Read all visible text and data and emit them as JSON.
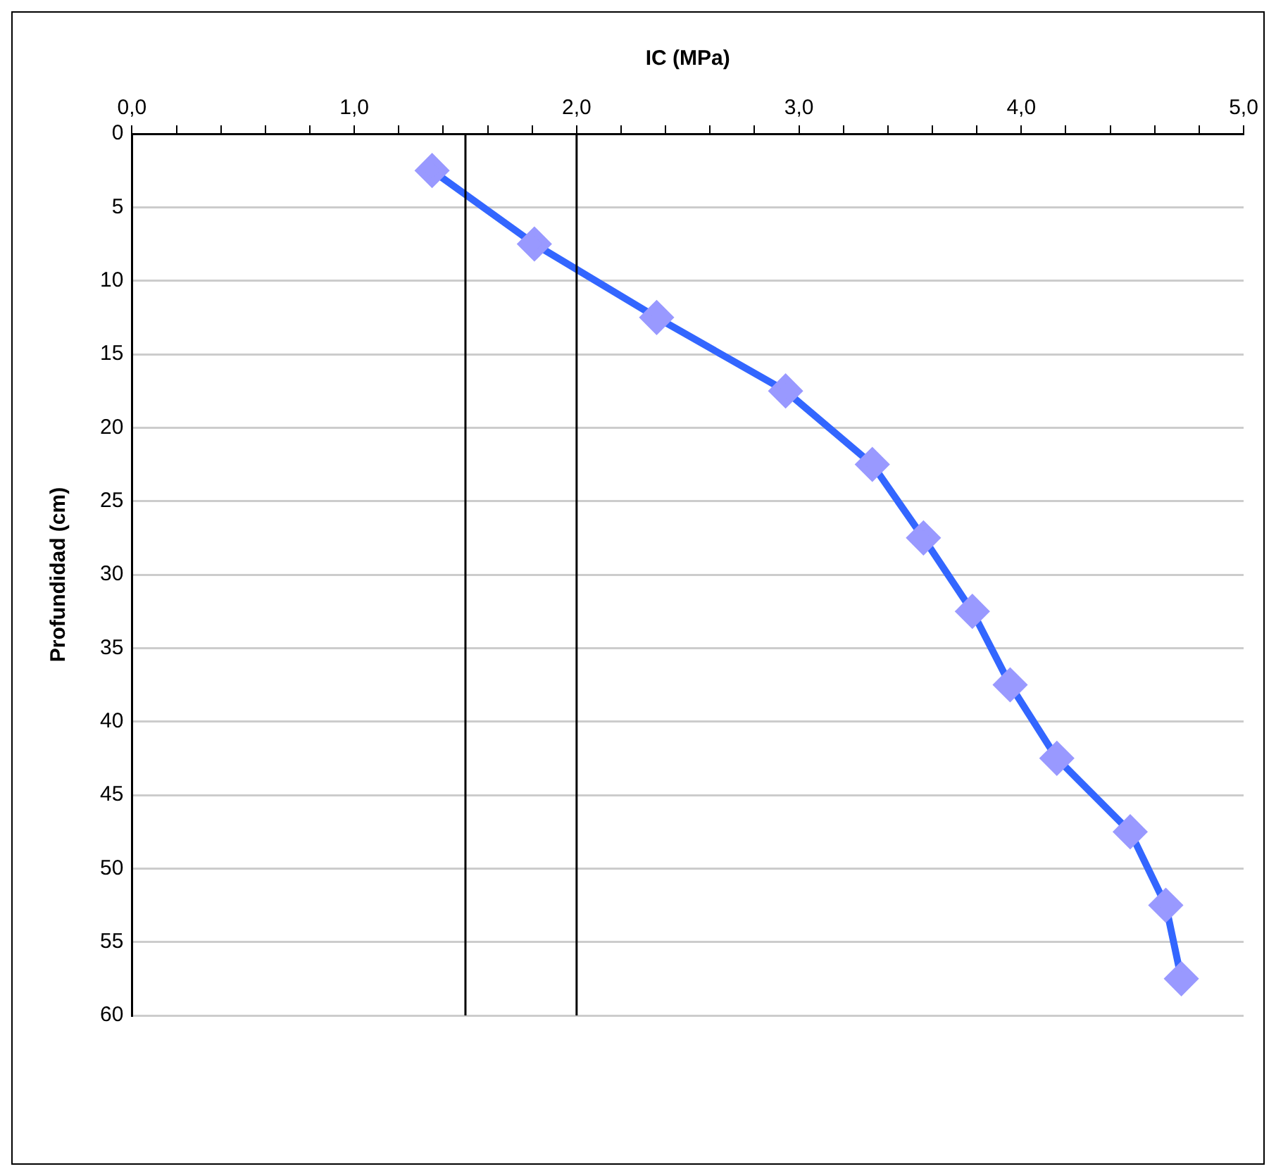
{
  "chart_data": {
    "type": "line",
    "xlabel": "IC (MPa)",
    "ylabel": "Profundidad (cm)",
    "xlim": [
      0,
      5
    ],
    "xticks": [
      {
        "value": 0,
        "label": "0,0"
      },
      {
        "value": 0.2,
        "label": null
      },
      {
        "value": 0.4,
        "label": null
      },
      {
        "value": 0.6,
        "label": null
      },
      {
        "value": 0.8,
        "label": null
      },
      {
        "value": 1,
        "label": "1,0"
      },
      {
        "value": 1.2,
        "label": null
      },
      {
        "value": 1.4,
        "label": null
      },
      {
        "value": 1.6,
        "label": null
      },
      {
        "value": 1.8,
        "label": null
      },
      {
        "value": 2,
        "label": "2,0"
      },
      {
        "value": 2.2,
        "label": null
      },
      {
        "value": 2.4,
        "label": null
      },
      {
        "value": 2.6,
        "label": null
      },
      {
        "value": 2.8,
        "label": null
      },
      {
        "value": 3,
        "label": "3,0"
      },
      {
        "value": 3.2,
        "label": null
      },
      {
        "value": 3.4,
        "label": null
      },
      {
        "value": 3.6,
        "label": null
      },
      {
        "value": 3.8,
        "label": null
      },
      {
        "value": 4,
        "label": "4,0"
      },
      {
        "value": 4.2,
        "label": null
      },
      {
        "value": 4.4,
        "label": null
      },
      {
        "value": 4.6,
        "label": null
      },
      {
        "value": 4.8,
        "label": null
      },
      {
        "value": 5,
        "label": "5,0"
      }
    ],
    "ylim": [
      60,
      0
    ],
    "yticks": [
      0,
      5,
      10,
      15,
      20,
      25,
      30,
      35,
      40,
      45,
      50,
      55,
      60
    ],
    "grid": "y",
    "marker": "diamond",
    "line_style": "solid",
    "series": [
      {
        "color": "#3366ff",
        "colors": [
          "#9999ff",
          "#9999ff",
          "#9999ff",
          "#9999ff",
          "#9999ff",
          "#9999ff",
          "#9999ff",
          "#9999ff",
          "#9999ff",
          "#9999ff",
          "#9999ff",
          "#9999ff"
        ],
        "x": [
          1.35,
          1.81,
          2.36,
          2.94,
          3.33,
          3.56,
          3.78,
          3.95,
          4.16,
          4.49,
          4.65,
          4.72
        ],
        "values": [
          2.5,
          7.5,
          12.5,
          17.5,
          22.5,
          27.5,
          32.5,
          37.5,
          42.5,
          47.5,
          52.5,
          57.5
        ]
      }
    ],
    "ref_lines": [
      {
        "axis": "x",
        "value": 1.5,
        "color": "#000000"
      },
      {
        "axis": "x",
        "value": 2,
        "color": "#000000"
      }
    ]
  }
}
